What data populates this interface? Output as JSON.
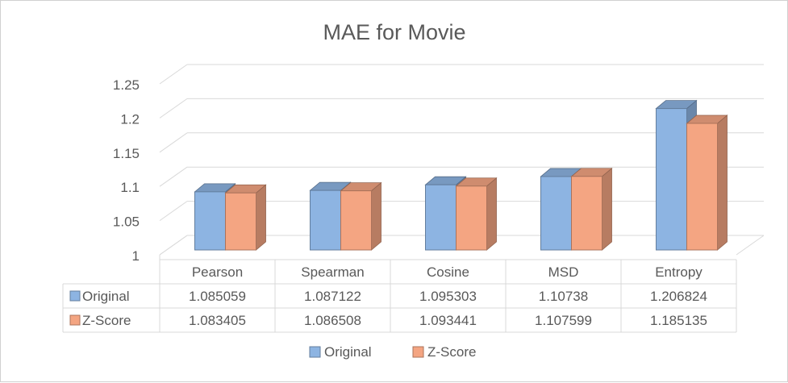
{
  "chart_data": {
    "type": "bar",
    "title": "MAE for Movie",
    "categories": [
      "Pearson",
      "Spearman",
      "Cosine",
      "MSD",
      "Entropy"
    ],
    "series": [
      {
        "name": "Original",
        "values": [
          1.085059,
          1.087122,
          1.095303,
          1.10738,
          1.206824
        ],
        "value_labels": [
          "1.085059",
          "1.087122",
          "1.095303",
          "1.10738",
          "1.206824"
        ],
        "color": "#8db4e2"
      },
      {
        "name": "Z-Score",
        "values": [
          1.083405,
          1.086508,
          1.093441,
          1.107599,
          1.185135
        ],
        "value_labels": [
          "1.083405",
          "1.086508",
          "1.093441",
          "1.107599",
          "1.185135"
        ],
        "color": "#f4a582"
      }
    ],
    "yticks": [
      "1",
      "1.05",
      "1.1",
      "1.15",
      "1.2",
      "1.25"
    ],
    "ylim": [
      1,
      1.25
    ],
    "grid": true,
    "legend": "bottom",
    "data_table": true
  }
}
